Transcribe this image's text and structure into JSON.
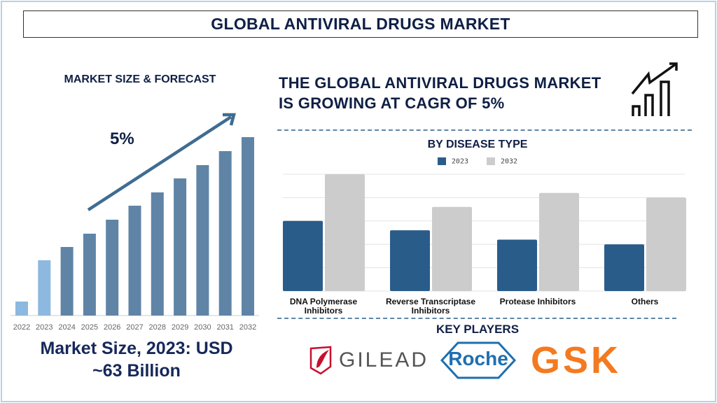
{
  "title": "GLOBAL ANTIVIRAL DRUGS MARKET",
  "headline": {
    "line1": "THE GLOBAL ANTIVIRAL DRUGS MARKET",
    "line2": "IS GROWING AT CAGR OF 5%"
  },
  "icons": {
    "growth": "bar-chart-growth-arrow-icon"
  },
  "market_size_text": {
    "line1": "Market Size, 2023: USD",
    "line2": "~63 Billion"
  },
  "key_players": {
    "title": "KEY PLAYERS",
    "logos": [
      "GILEAD",
      "Roche",
      "GSK"
    ]
  },
  "colors": {
    "navy": "#0f1f45",
    "forecast_bar": "#5f84a6",
    "historic_bar": "#8db8df",
    "series_2023": "#2a5c8a",
    "series_2032": "#cccccc",
    "gsk_orange": "#f47a20",
    "roche_blue": "#1e6fb0",
    "gilead_red": "#c8102e"
  },
  "chart_data": [
    {
      "type": "bar",
      "title": "MARKET SIZE & FORECAST",
      "annotation": "5%",
      "categories": [
        "2022",
        "2023",
        "2024",
        "2025",
        "2026",
        "2027",
        "2028",
        "2029",
        "2030",
        "2031",
        "2032"
      ],
      "values": [
        20,
        79,
        98,
        117,
        137,
        157,
        176,
        196,
        215,
        235,
        255
      ],
      "highlighted_categories": [
        "2022",
        "2023"
      ],
      "ylim": [
        0,
        260
      ],
      "grid": false,
      "trend_arrow": true
    },
    {
      "type": "bar",
      "title": "BY DISEASE TYPE",
      "categories": [
        "DNA Polymerase Inhibitors",
        "Reverse Transcriptase Inhibitors",
        "Protease Inhibitors",
        "Others"
      ],
      "series": [
        {
          "name": "2023",
          "values": [
            3.0,
            2.6,
            2.2,
            2.0
          ]
        },
        {
          "name": "2032",
          "values": [
            5.0,
            3.6,
            4.2,
            4.0
          ]
        }
      ],
      "ylim": [
        0,
        5
      ],
      "grid": true,
      "legend": "top-center"
    }
  ]
}
